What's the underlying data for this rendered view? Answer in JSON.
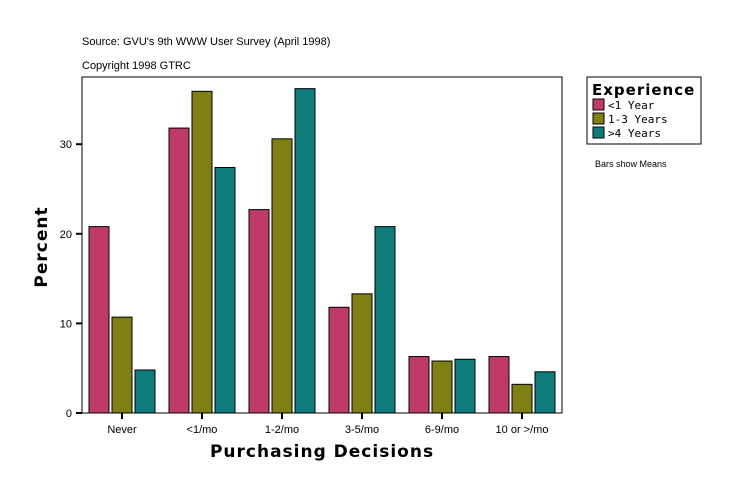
{
  "chart_data": {
    "type": "bar",
    "title": "Source: GVU's 9th WWW User Survey (April 1998)",
    "subtitle": "Copyright 1998 GTRC",
    "xlabel": "Purchasing Decisions",
    "ylabel": "Percent",
    "ylim": [
      0,
      37.5
    ],
    "yticks": [
      0,
      10,
      20,
      30
    ],
    "grid": false,
    "categories": [
      "Never",
      "<1/mo",
      "1-2/mo",
      "3-5/mo",
      "6-9/mo",
      "10 or >/mo"
    ],
    "legend": {
      "title": "Experience",
      "placement": "right"
    },
    "note": "Bars show Means",
    "series": [
      {
        "name": "<1 Year",
        "color": "#bf3a66",
        "values": [
          20.8,
          31.8,
          22.7,
          11.8,
          6.3,
          6.3
        ]
      },
      {
        "name": "1-3 Years",
        "color": "#7f7f13",
        "values": [
          10.7,
          35.9,
          30.6,
          13.3,
          5.8,
          3.2
        ]
      },
      {
        "name": ">4 Years",
        "color": "#0f7c7c",
        "values": [
          4.8,
          27.4,
          36.2,
          20.8,
          6.0,
          4.6
        ]
      }
    ]
  }
}
